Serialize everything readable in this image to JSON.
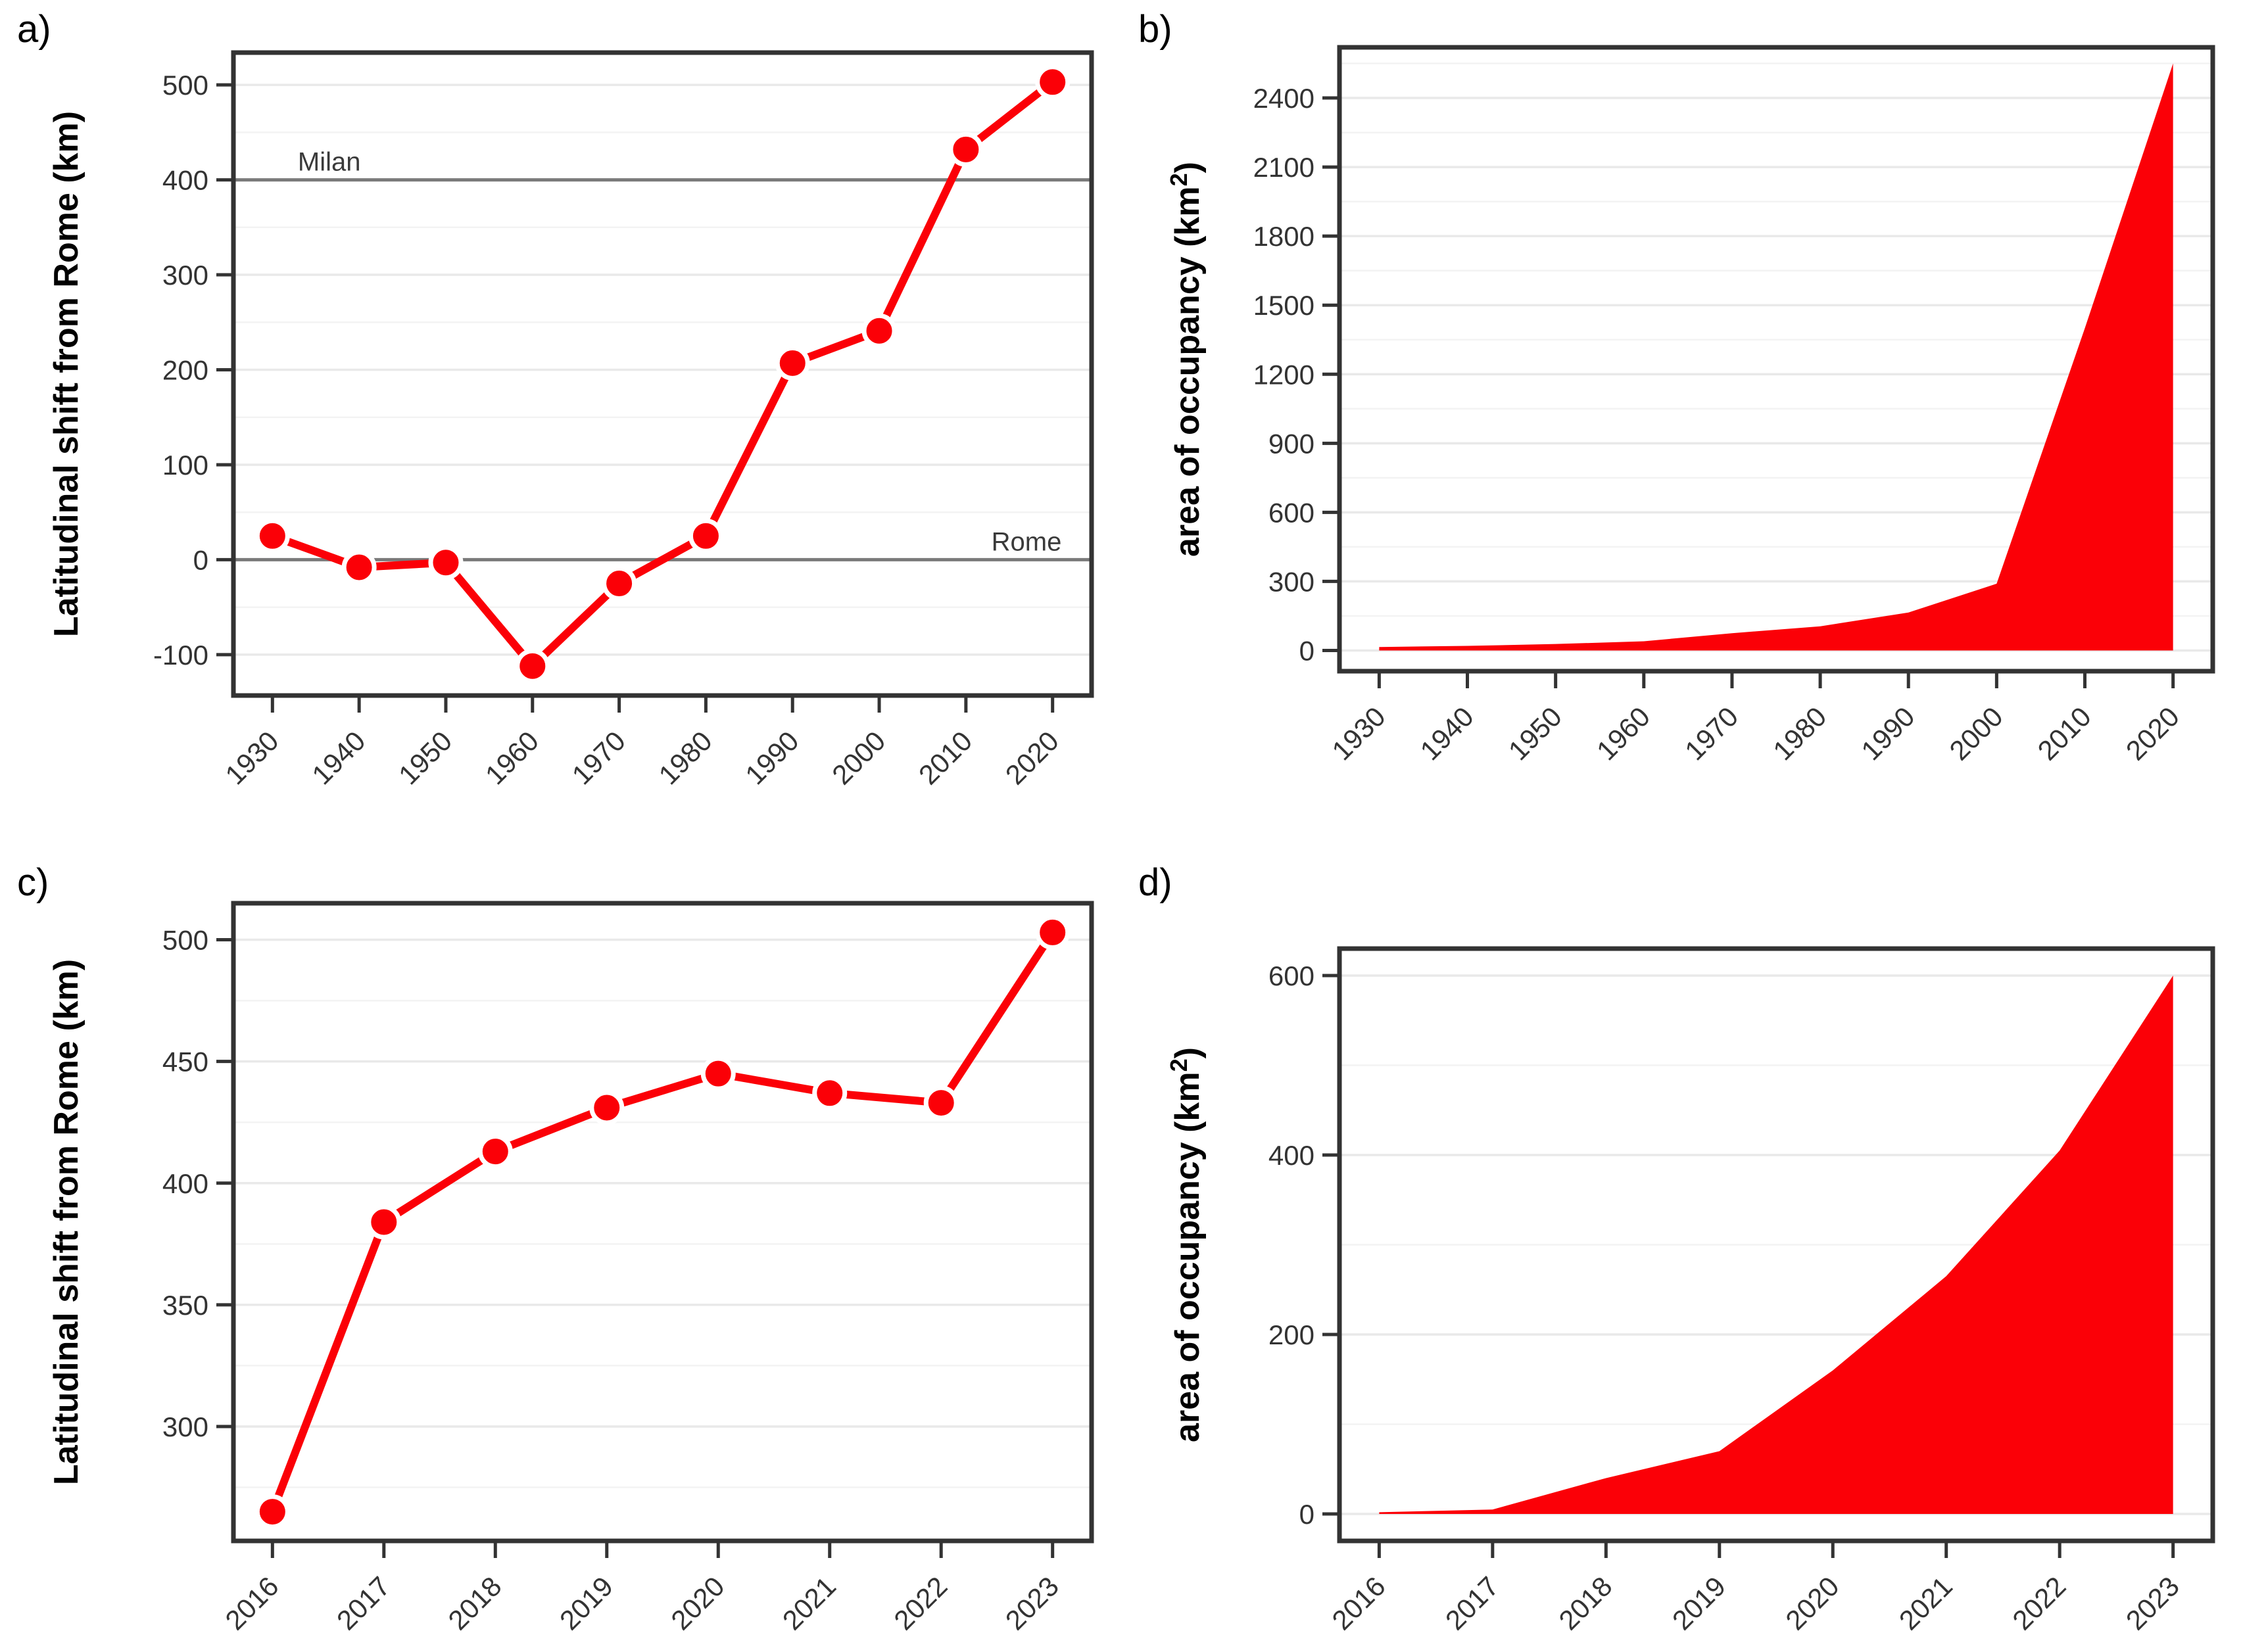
{
  "style": {
    "accent": "#FB0007",
    "panel_border": "#333333",
    "grid_major": "#E9E9E9",
    "grid_minor": "#F3F3F3",
    "ref_line": "#7A7A7A",
    "ref_label_color": "#3A3A3A",
    "tick_text": "#333333",
    "tick_mark": "#333333",
    "axis_title_color": "#000000",
    "background": "#FFFFFF",
    "point_halo": "#FFFFFF"
  },
  "chart_data": [
    {
      "id": "a",
      "label": "a)",
      "type": "line",
      "title": "",
      "xlabel": "",
      "ylabel": "Latitudinal shift from Rome (km)",
      "x": [
        1930,
        1940,
        1950,
        1960,
        1970,
        1980,
        1990,
        2000,
        2010,
        2020
      ],
      "values": [
        25,
        -8,
        -3,
        -112,
        -25,
        25,
        207,
        241,
        432,
        503
      ],
      "x_ticks": [
        1930,
        1940,
        1950,
        1960,
        1970,
        1980,
        1990,
        2000,
        2010,
        2020
      ],
      "y_ticks": [
        -100,
        0,
        100,
        200,
        300,
        400,
        500
      ],
      "xlim": [
        1925.5,
        2024.5
      ],
      "ylim": [
        -143,
        534
      ],
      "y_minor_step": 50,
      "grid": true,
      "legend": "none",
      "ref_lines": [
        {
          "value": 400,
          "label": "Milan",
          "side": "left"
        },
        {
          "value": 0,
          "label": "Rome",
          "side": "right"
        }
      ]
    },
    {
      "id": "b",
      "label": "b)",
      "type": "area",
      "title": "",
      "xlabel": "",
      "ylabel": "area of occupancy (km²)",
      "x": [
        1930,
        1940,
        1950,
        1960,
        1970,
        1980,
        1990,
        2000,
        2010,
        2020
      ],
      "values": [
        15,
        20,
        28,
        40,
        75,
        105,
        165,
        290,
        1400,
        2550
      ],
      "x_ticks": [
        1930,
        1940,
        1950,
        1960,
        1970,
        1980,
        1990,
        2000,
        2010,
        2020
      ],
      "y_ticks": [
        0,
        300,
        600,
        900,
        1200,
        1500,
        1800,
        2100,
        2400
      ],
      "xlim": [
        1925.5,
        2024.5
      ],
      "ylim": [
        -90,
        2620
      ],
      "y_minor_step": 150,
      "grid": true,
      "legend": "none",
      "ref_lines": []
    },
    {
      "id": "c",
      "label": "c)",
      "type": "line",
      "title": "",
      "xlabel": "",
      "ylabel": "Latitudinal shift from Rome (km)",
      "x": [
        2016,
        2017,
        2018,
        2019,
        2020,
        2021,
        2022,
        2023
      ],
      "values": [
        265,
        384,
        413,
        431,
        445,
        437,
        433,
        503
      ],
      "x_ticks": [
        2016,
        2017,
        2018,
        2019,
        2020,
        2021,
        2022,
        2023
      ],
      "y_ticks": [
        300,
        350,
        400,
        450,
        500
      ],
      "xlim": [
        2015.65,
        2023.35
      ],
      "ylim": [
        253,
        515
      ],
      "y_minor_step": 25,
      "grid": true,
      "legend": "none",
      "ref_lines": []
    },
    {
      "id": "d",
      "label": "d)",
      "type": "area",
      "title": "",
      "xlabel": "",
      "ylabel": "area of occupancy (km²)",
      "x": [
        2016,
        2017,
        2018,
        2019,
        2020,
        2021,
        2022,
        2023
      ],
      "values": [
        2,
        5,
        40,
        70,
        160,
        265,
        405,
        600
      ],
      "x_ticks": [
        2016,
        2017,
        2018,
        2019,
        2020,
        2021,
        2022,
        2023
      ],
      "y_ticks": [
        0,
        200,
        400,
        600
      ],
      "xlim": [
        2015.65,
        2023.35
      ],
      "ylim": [
        -30,
        630
      ],
      "y_minor_step": 100,
      "grid": true,
      "legend": "none",
      "ref_lines": []
    }
  ]
}
